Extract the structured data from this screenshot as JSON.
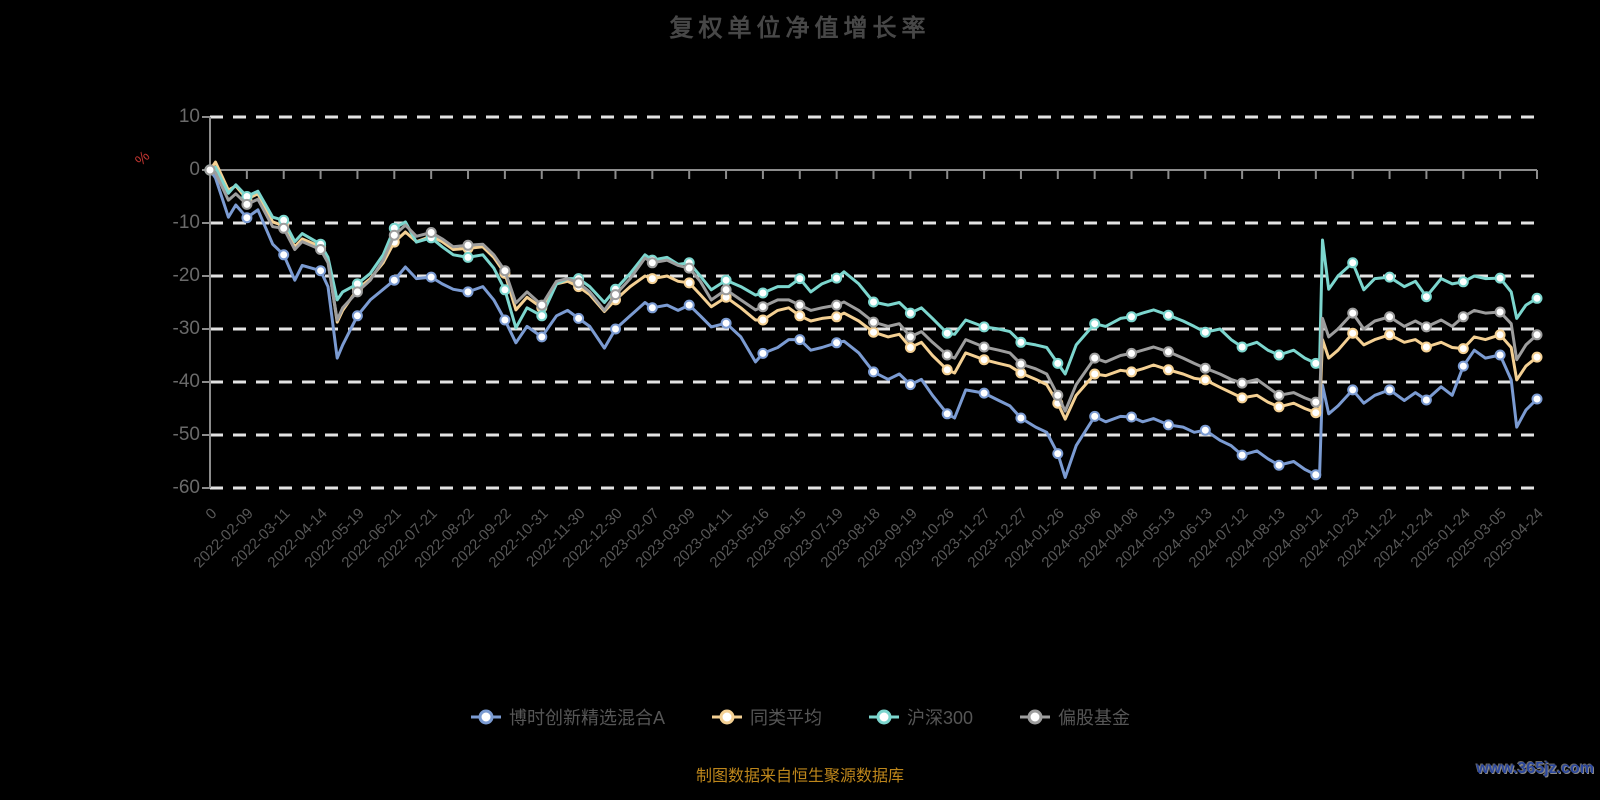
{
  "page": {
    "background": "#000000"
  },
  "footer": {
    "caption": "制图数据来自恒生聚源数据库",
    "watermark": "www.365jz.com"
  },
  "chart_data": {
    "type": "line",
    "title": "复权单位净值增长率",
    "legend_position": "bottom",
    "grid": "dashed horizontal gridlines, x-axis line drawn at zero",
    "colors": {
      "grid": "#e3e3e3",
      "axis": "#8c8c8c",
      "title": "#474747",
      "axis_label": "#5c5c5c",
      "y_unit": "#c13530",
      "caption": "#bd861b",
      "watermark": "#2a469c",
      "background": "#000000"
    },
    "y_axis": {
      "name": "%",
      "min": -60,
      "max": 10,
      "ticks": [
        10,
        0,
        -10,
        -20,
        -30,
        -40,
        -50,
        -60
      ]
    },
    "x_axis": {
      "labels": [
        "0",
        "2022-02-09",
        "2022-03-11",
        "2022-04-14",
        "2022-05-19",
        "2022-06-21",
        "2022-07-21",
        "2022-08-22",
        "2022-09-22",
        "2022-10-31",
        "2022-11-30",
        "2022-12-30",
        "2023-02-07",
        "2023-03-09",
        "2023-04-11",
        "2023-05-16",
        "2023-06-15",
        "2023-07-19",
        "2023-08-18",
        "2023-09-19",
        "2023-10-26",
        "2023-11-27",
        "2023-12-27",
        "2024-01-26",
        "2024-03-06",
        "2024-04-08",
        "2024-05-13",
        "2024-06-13",
        "2024-07-12",
        "2024-08-13",
        "2024-09-12",
        "2024-10-23",
        "2024-11-22",
        "2024-12-24",
        "2025-01-24",
        "2025-03-05",
        "2025-04-24"
      ]
    },
    "x": [
      0,
      0.15,
      0.5,
      0.7,
      1,
      1.3,
      1.7,
      2,
      2.3,
      2.5,
      3,
      3.2,
      3.45,
      3.6,
      4,
      4.35,
      4.7,
      5,
      5.3,
      5.6,
      6,
      6.3,
      6.6,
      7,
      7.4,
      7.7,
      8,
      8.3,
      8.6,
      9,
      9.4,
      9.7,
      10,
      10.3,
      10.7,
      11,
      11.4,
      11.8,
      12,
      12.4,
      12.7,
      13,
      13.3,
      13.6,
      14,
      14.4,
      14.8,
      15,
      15.4,
      15.7,
      16,
      16.3,
      16.6,
      17,
      17.2,
      17.6,
      18,
      18.4,
      18.7,
      19,
      19.3,
      19.6,
      20,
      20.2,
      20.5,
      21,
      21.4,
      21.7,
      22,
      22.4,
      22.7,
      23,
      23.2,
      23.5,
      24,
      24.3,
      24.7,
      25,
      25.3,
      25.6,
      26,
      26.4,
      26.7,
      27,
      27.4,
      27.7,
      28,
      28.4,
      28.7,
      29,
      29.4,
      29.7,
      30,
      30.1,
      30.18,
      30.35,
      30.6,
      31,
      31.3,
      31.6,
      32,
      32.4,
      32.7,
      33,
      33.4,
      33.7,
      34,
      34.3,
      34.6,
      35,
      35.3,
      35.45,
      35.7,
      36
    ],
    "series": [
      {
        "id": "fund",
        "name": "博时创新精选混合A",
        "color": "#7B9BD2",
        "values": [
          0,
          -1.5,
          -8.9,
          -6.6,
          -9,
          -7.5,
          -14,
          -16,
          -20.8,
          -18,
          -19,
          -22,
          -35.5,
          -33,
          -27.5,
          -24.5,
          -22.5,
          -20.8,
          -18.3,
          -20.5,
          -20.2,
          -21.5,
          -22.5,
          -23,
          -22,
          -24.5,
          -28.3,
          -32.6,
          -29.5,
          -31.5,
          -27.5,
          -26.5,
          -28,
          -29.5,
          -33.6,
          -30,
          -27.5,
          -25,
          -26,
          -25.5,
          -26.5,
          -25.5,
          -27.5,
          -29.6,
          -28.9,
          -31.5,
          -36.2,
          -34.6,
          -33.5,
          -32,
          -32,
          -34,
          -33.5,
          -32.6,
          -32.3,
          -34.5,
          -38.1,
          -39.5,
          -38.5,
          -40.5,
          -39.5,
          -42.5,
          -46,
          -46.8,
          -41.5,
          -42.1,
          -43.5,
          -44.5,
          -46.8,
          -48.5,
          -49.5,
          -53.5,
          -58,
          -52,
          -46.5,
          -47.5,
          -46.5,
          -46.6,
          -47.5,
          -46.9,
          -48.1,
          -48.5,
          -49.5,
          -49.1,
          -51,
          -52,
          -53.8,
          -53,
          -54.5,
          -55.7,
          -55,
          -56.5,
          -57.5,
          -57.9,
          -40.6,
          -46,
          -44.5,
          -41.5,
          -44,
          -42.5,
          -41.5,
          -43.5,
          -42,
          -43.4,
          -40.9,
          -42.5,
          -37,
          -34,
          -35.5,
          -34.9,
          -39.6,
          -48.5,
          -45.3,
          -43.2
        ]
      },
      {
        "id": "peer-average",
        "name": "同类平均",
        "color": "#F4D093",
        "values": [
          0,
          1.5,
          -3.8,
          -3,
          -5.5,
          -4.5,
          -9.8,
          -10.5,
          -14.5,
          -13,
          -14.5,
          -17,
          -28.7,
          -26.5,
          -22.5,
          -20.5,
          -17.5,
          -13.6,
          -11.7,
          -13.5,
          -12.5,
          -13.5,
          -15,
          -14.8,
          -14.5,
          -16.5,
          -19.5,
          -26.4,
          -24,
          -26,
          -21.5,
          -21,
          -22,
          -23.5,
          -26.7,
          -24.5,
          -22,
          -20,
          -20.5,
          -20,
          -21,
          -21.3,
          -23.5,
          -25.8,
          -24,
          -26,
          -28.3,
          -28.3,
          -26.5,
          -26,
          -27.5,
          -28.5,
          -28,
          -27.7,
          -27,
          -28.5,
          -30.6,
          -31.5,
          -31,
          -33.5,
          -32.5,
          -35,
          -37.7,
          -38.3,
          -34.5,
          -35.8,
          -36.5,
          -37,
          -38.3,
          -39.5,
          -40.5,
          -44,
          -47,
          -42.5,
          -38.5,
          -38.8,
          -37.8,
          -38.1,
          -37.5,
          -36.8,
          -37.7,
          -38.5,
          -39.3,
          -39.6,
          -41,
          -42,
          -43,
          -42.5,
          -43.8,
          -44.7,
          -44,
          -45,
          -45.8,
          -46.2,
          -32,
          -35.5,
          -34,
          -30.8,
          -33,
          -32,
          -31.1,
          -32.5,
          -32,
          -33.4,
          -32.5,
          -33.5,
          -33.7,
          -31.5,
          -32,
          -31.1,
          -33.5,
          -39.6,
          -37,
          -35.3
        ]
      },
      {
        "id": "csi300",
        "name": "沪深300",
        "color": "#7CD6CE",
        "values": [
          0,
          0.5,
          -4.4,
          -2.8,
          -5,
          -4,
          -8.9,
          -9.5,
          -13.5,
          -12,
          -14,
          -16.5,
          -24.5,
          -23,
          -21.5,
          -19.5,
          -16,
          -11,
          -9.8,
          -13.6,
          -12.8,
          -14.5,
          -16,
          -16.5,
          -16,
          -18.5,
          -22.6,
          -29.8,
          -26,
          -27.5,
          -21.5,
          -20.5,
          -20.5,
          -22,
          -25,
          -22.5,
          -19.5,
          -16,
          -17,
          -16.5,
          -17.8,
          -17.5,
          -20,
          -22.6,
          -20.8,
          -22,
          -23.6,
          -23.2,
          -22,
          -22,
          -20.5,
          -23,
          -21.5,
          -20.4,
          -19.2,
          -21.5,
          -24.9,
          -25.5,
          -25,
          -27,
          -26,
          -28,
          -30.8,
          -31,
          -28.3,
          -29.6,
          -30,
          -30.5,
          -32.5,
          -33,
          -33.5,
          -36.5,
          -38.5,
          -33,
          -29,
          -29.5,
          -28,
          -27.7,
          -27,
          -26.4,
          -27.4,
          -28.5,
          -29.5,
          -30.6,
          -30,
          -32,
          -33.4,
          -32.5,
          -34,
          -34.9,
          -34,
          -35.5,
          -36.5,
          -37.2,
          -13.2,
          -22.5,
          -20,
          -17.5,
          -22.6,
          -20.5,
          -20.2,
          -22,
          -21,
          -23.9,
          -20.5,
          -21.5,
          -21.1,
          -20,
          -20.5,
          -20.4,
          -23,
          -28,
          -25.5,
          -24.2
        ]
      },
      {
        "id": "equity-funds",
        "name": "偏股基金",
        "color": "#9D9D9D",
        "values": [
          0,
          -0.5,
          -5.7,
          -4.5,
          -6.5,
          -5.5,
          -10.7,
          -11,
          -15,
          -13.5,
          -15,
          -17.5,
          -28.3,
          -26,
          -23,
          -20.8,
          -17,
          -12.3,
          -10.4,
          -12.5,
          -11.8,
          -13,
          -14.5,
          -14.2,
          -14,
          -16,
          -19,
          -25.1,
          -23,
          -25.5,
          -21,
          -20.5,
          -21.3,
          -23,
          -26.5,
          -23.5,
          -20.5,
          -16.6,
          -17.5,
          -17,
          -18,
          -18.5,
          -21,
          -24.5,
          -22.6,
          -24.5,
          -26.4,
          -25.8,
          -24.5,
          -24.5,
          -25.5,
          -26.5,
          -26,
          -25.5,
          -24.9,
          -26.5,
          -28.7,
          -29.5,
          -29,
          -31.5,
          -30.5,
          -32.5,
          -34.9,
          -35.5,
          -32,
          -33.4,
          -34,
          -34.5,
          -36.6,
          -37.5,
          -38.5,
          -42.5,
          -45.5,
          -40.5,
          -35.5,
          -36.2,
          -35,
          -34.6,
          -34,
          -33.4,
          -34.3,
          -35.5,
          -36.5,
          -37.4,
          -38.5,
          -39.5,
          -40.2,
          -39.5,
          -41,
          -42.5,
          -42,
          -43,
          -43.8,
          -44,
          -28,
          -31.5,
          -30,
          -27,
          -30,
          -28.5,
          -27.7,
          -29.5,
          -28.5,
          -29.6,
          -28.3,
          -29.5,
          -27.7,
          -26.5,
          -27,
          -26.8,
          -29,
          -35.8,
          -33,
          -31.1
        ]
      }
    ]
  }
}
